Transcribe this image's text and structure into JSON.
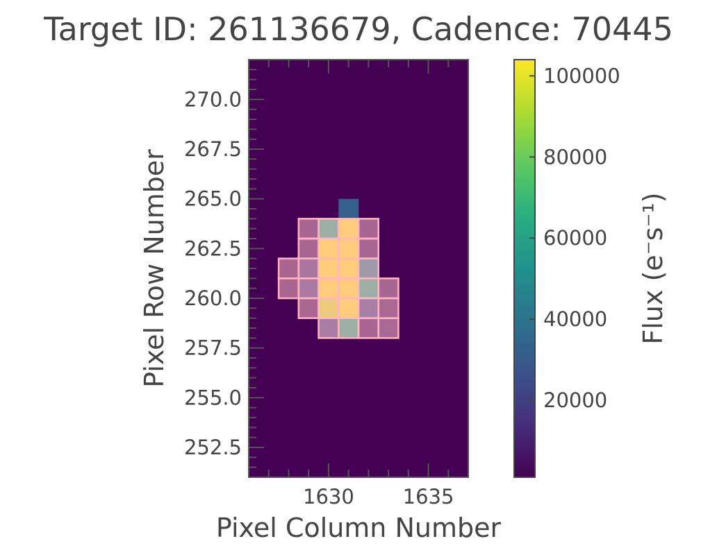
{
  "chart_data": {
    "type": "heatmap",
    "title": "Target ID: 261136679, Cadence: 70445",
    "xlabel": "Pixel Column Number",
    "ylabel": "Pixel Row Number",
    "colorbar_label": "Flux (e⁻s⁻¹)",
    "colormap": "viridis",
    "xlim": [
      1626,
      1637
    ],
    "ylim": [
      251,
      272
    ],
    "x_ticks": [
      1630,
      1635
    ],
    "x_tick_labels": [
      "1630",
      "1635"
    ],
    "y_ticks": [
      252.5,
      255.0,
      257.5,
      260.0,
      262.5,
      265.0,
      267.5,
      270.0
    ],
    "y_tick_labels": [
      "252.5",
      "255.0",
      "257.5",
      "260.0",
      "262.5",
      "265.0",
      "267.5",
      "270.0"
    ],
    "colorbar_range": [
      1000,
      104000
    ],
    "colorbar_ticks": [
      20000,
      40000,
      60000,
      80000,
      100000
    ],
    "colorbar_tick_labels": [
      "20000",
      "40000",
      "60000",
      "80000",
      "100000"
    ],
    "background_flux": 1500,
    "pixels": [
      {
        "col": 1629,
        "row": 263.5,
        "flux": 2500
      },
      {
        "col": 1630,
        "row": 263.5,
        "flux": 62000
      },
      {
        "col": 1631,
        "row": 264.5,
        "flux": 33000
      },
      {
        "col": 1631,
        "row": 263.5,
        "flux": 104000
      },
      {
        "col": 1632,
        "row": 263.5,
        "flux": 2500
      },
      {
        "col": 1629,
        "row": 262.5,
        "flux": 2500
      },
      {
        "col": 1630,
        "row": 262.5,
        "flux": 104000
      },
      {
        "col": 1631,
        "row": 262.5,
        "flux": 104000
      },
      {
        "col": 1632,
        "row": 262.5,
        "flux": 2500
      },
      {
        "col": 1628,
        "row": 261.5,
        "flux": 2000
      },
      {
        "col": 1629,
        "row": 261.5,
        "flux": 12000
      },
      {
        "col": 1630,
        "row": 261.5,
        "flux": 104000
      },
      {
        "col": 1631,
        "row": 261.5,
        "flux": 104000
      },
      {
        "col": 1632,
        "row": 261.5,
        "flux": 42000
      },
      {
        "col": 1628,
        "row": 260.5,
        "flux": 2000
      },
      {
        "col": 1629,
        "row": 260.5,
        "flux": 15000
      },
      {
        "col": 1630,
        "row": 260.5,
        "flux": 104000
      },
      {
        "col": 1631,
        "row": 260.5,
        "flux": 104000
      },
      {
        "col": 1632,
        "row": 260.5,
        "flux": 62000
      },
      {
        "col": 1633,
        "row": 260.5,
        "flux": 2500
      },
      {
        "col": 1629,
        "row": 259.5,
        "flux": 3000
      },
      {
        "col": 1630,
        "row": 259.5,
        "flux": 98000
      },
      {
        "col": 1631,
        "row": 259.5,
        "flux": 104000
      },
      {
        "col": 1632,
        "row": 259.5,
        "flux": 20000
      },
      {
        "col": 1633,
        "row": 259.5,
        "flux": 4000
      },
      {
        "col": 1630,
        "row": 258.5,
        "flux": 18000
      },
      {
        "col": 1631,
        "row": 258.5,
        "flux": 62000
      },
      {
        "col": 1632,
        "row": 258.5,
        "flux": 2500
      },
      {
        "col": 1633,
        "row": 258.5,
        "flux": 3500
      }
    ],
    "aperture_pixels": [
      {
        "col": 1629,
        "row": 263.5
      },
      {
        "col": 1630,
        "row": 263.5
      },
      {
        "col": 1631,
        "row": 263.5
      },
      {
        "col": 1632,
        "row": 263.5
      },
      {
        "col": 1629,
        "row": 262.5
      },
      {
        "col": 1630,
        "row": 262.5
      },
      {
        "col": 1631,
        "row": 262.5
      },
      {
        "col": 1632,
        "row": 262.5
      },
      {
        "col": 1628,
        "row": 261.5
      },
      {
        "col": 1629,
        "row": 261.5
      },
      {
        "col": 1630,
        "row": 261.5
      },
      {
        "col": 1631,
        "row": 261.5
      },
      {
        "col": 1632,
        "row": 261.5
      },
      {
        "col": 1628,
        "row": 260.5
      },
      {
        "col": 1629,
        "row": 260.5
      },
      {
        "col": 1630,
        "row": 260.5
      },
      {
        "col": 1631,
        "row": 260.5
      },
      {
        "col": 1632,
        "row": 260.5
      },
      {
        "col": 1633,
        "row": 260.5
      },
      {
        "col": 1629,
        "row": 259.5
      },
      {
        "col": 1630,
        "row": 259.5
      },
      {
        "col": 1631,
        "row": 259.5
      },
      {
        "col": 1632,
        "row": 259.5
      },
      {
        "col": 1633,
        "row": 259.5
      },
      {
        "col": 1630,
        "row": 258.5
      },
      {
        "col": 1631,
        "row": 258.5
      },
      {
        "col": 1632,
        "row": 258.5
      },
      {
        "col": 1633,
        "row": 258.5
      }
    ],
    "aperture_color": "#ffb6c1",
    "grid": false
  }
}
